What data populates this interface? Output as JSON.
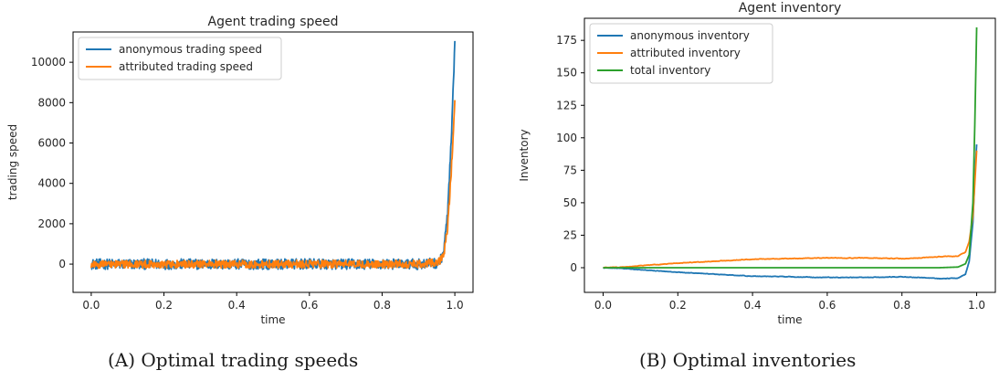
{
  "captions": {
    "a": "(A) Optimal trading speeds",
    "b": "(B) Optimal inventories"
  },
  "chart_data": [
    {
      "type": "line",
      "title": "Agent trading speed",
      "xlabel": "time",
      "ylabel": "trading speed",
      "xlim": [
        -0.05,
        1.05
      ],
      "ylim": [
        -1400,
        11500
      ],
      "xticks": [
        0.0,
        0.2,
        0.4,
        0.6,
        0.8,
        1.0
      ],
      "xtick_labels": [
        "0.0",
        "0.2",
        "0.4",
        "0.6",
        "0.8",
        "1.0"
      ],
      "yticks": [
        0,
        2000,
        4000,
        6000,
        8000,
        10000
      ],
      "ytick_labels": [
        "0",
        "2000",
        "4000",
        "6000",
        "8000",
        "10000"
      ],
      "grid": false,
      "legend": "top-left",
      "series": [
        {
          "name": "anonymous trading speed",
          "color": "#1f77b4",
          "noise_amplitude": 260,
          "x": [
            0.0,
            0.1,
            0.2,
            0.3,
            0.4,
            0.5,
            0.6,
            0.7,
            0.8,
            0.9,
            0.95,
            0.96,
            0.97,
            0.98,
            0.99,
            1.0
          ],
          "y": [
            0,
            0,
            0,
            0,
            0,
            0,
            0,
            0,
            0,
            0,
            50,
            150,
            700,
            2500,
            6000,
            10800
          ]
        },
        {
          "name": "attributed trading speed",
          "color": "#ff7f0e",
          "noise_amplitude": 200,
          "x": [
            0.0,
            0.1,
            0.2,
            0.3,
            0.4,
            0.5,
            0.6,
            0.7,
            0.8,
            0.9,
            0.95,
            0.96,
            0.97,
            0.98,
            0.99,
            1.0
          ],
          "y": [
            0,
            0,
            0,
            0,
            0,
            0,
            0,
            0,
            0,
            0,
            80,
            200,
            500,
            1800,
            4500,
            8100
          ]
        }
      ]
    },
    {
      "type": "line",
      "title": "Agent inventory",
      "xlabel": "time",
      "ylabel": "Inventory",
      "xlim": [
        -0.05,
        1.05
      ],
      "ylim": [
        -19,
        192
      ],
      "xticks": [
        0.0,
        0.2,
        0.4,
        0.6,
        0.8,
        1.0
      ],
      "xtick_labels": [
        "0.0",
        "0.2",
        "0.4",
        "0.6",
        "0.8",
        "1.0"
      ],
      "yticks": [
        0,
        25,
        50,
        75,
        100,
        125,
        150,
        175
      ],
      "ytick_labels": [
        "0",
        "25",
        "50",
        "75",
        "100",
        "125",
        "150",
        "175"
      ],
      "grid": false,
      "legend": "top-left",
      "series": [
        {
          "name": "anonymous inventory",
          "color": "#1f77b4",
          "noise_amplitude": 0.5,
          "x": [
            0.0,
            0.05,
            0.1,
            0.2,
            0.3,
            0.4,
            0.5,
            0.6,
            0.7,
            0.8,
            0.85,
            0.9,
            0.95,
            0.97,
            0.98,
            0.99,
            0.995,
            1.0
          ],
          "y": [
            0,
            -0.5,
            -1.5,
            -3.5,
            -5,
            -6.5,
            -7,
            -7.5,
            -7.5,
            -7,
            -7.5,
            -8.5,
            -8,
            -5,
            5,
            35,
            70,
            95
          ]
        },
        {
          "name": "attributed inventory",
          "color": "#ff7f0e",
          "noise_amplitude": 0.5,
          "x": [
            0.0,
            0.05,
            0.1,
            0.2,
            0.3,
            0.4,
            0.5,
            0.6,
            0.7,
            0.8,
            0.85,
            0.9,
            0.95,
            0.97,
            0.98,
            0.99,
            0.995,
            1.0
          ],
          "y": [
            0,
            0.5,
            1.5,
            3.5,
            5,
            6.5,
            7,
            7.5,
            7.5,
            7,
            7.5,
            8.5,
            9,
            12,
            20,
            40,
            65,
            90
          ]
        },
        {
          "name": "total inventory",
          "color": "#2ca02c",
          "noise_amplitude": 0,
          "x": [
            0.0,
            0.1,
            0.2,
            0.3,
            0.4,
            0.5,
            0.6,
            0.7,
            0.8,
            0.9,
            0.95,
            0.97,
            0.98,
            0.99,
            0.995,
            1.0
          ],
          "y": [
            0,
            0,
            0,
            0,
            0,
            0,
            0,
            0,
            0,
            0,
            0.5,
            3,
            10,
            50,
            110,
            185
          ]
        }
      ]
    }
  ]
}
